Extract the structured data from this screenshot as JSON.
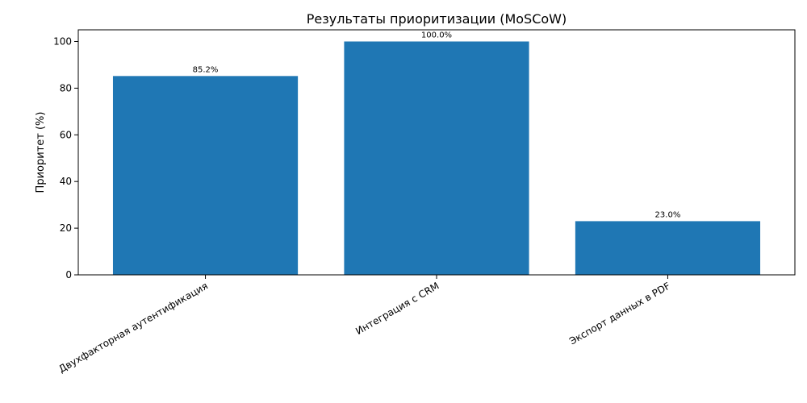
{
  "chart_data": {
    "type": "bar",
    "title": "Результаты приоритизации (MoSCoW)",
    "xlabel": "",
    "ylabel": "Приоритет (%)",
    "categories": [
      "Двухфакторная аутентификация",
      "Интеграция с CRM",
      "Экспорт данных в PDF"
    ],
    "values": [
      85.2,
      100.0,
      23.0
    ],
    "data_labels": [
      "85.2%",
      "100.0%",
      "23.0%"
    ],
    "ylim": [
      0,
      105
    ],
    "yticks": [
      0,
      20,
      40,
      60,
      80,
      100
    ],
    "ytick_labels": [
      "0",
      "20",
      "40",
      "60",
      "80",
      "100"
    ],
    "grid": false,
    "bar_color": "#1f77b4"
  }
}
